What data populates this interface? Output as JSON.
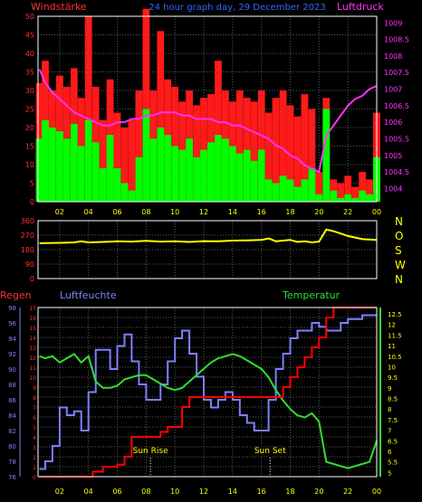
{
  "header": {
    "left_label": "Windstärke",
    "center_label": "24 hour graph day, 29 December 2023",
    "right_label": "Luftdruck"
  },
  "colors": {
    "background": "#000000",
    "frame": "#ffffff",
    "grid": "#5a5a5a",
    "wind_gust": "#ff1a1a",
    "wind_avg": "#00ff00",
    "pressure": "#ff33ff",
    "direction": "#ffff00",
    "humidity": "#7f7fff",
    "temperature": "#33dd33",
    "rain": "#ff0000",
    "left_axis_text": "#ff3030",
    "direction_letters": "#ffff00",
    "humidity_axis_text": "#7f7fff",
    "temp_axis_text": "#ffff00",
    "sun_text": "#ffff00",
    "title_text": "#3366ff"
  },
  "x_axis": {
    "ticks": [
      "02",
      "04",
      "06",
      "08",
      "10",
      "12",
      "14",
      "16",
      "18",
      "20",
      "22",
      "00"
    ],
    "range_hours": [
      0.5,
      24
    ]
  },
  "bottom_panel": {
    "rain_label": "Regen",
    "humidity_label": "Luftfeuchte",
    "temperature_label": "Temperatur",
    "sunrise_label": "Sun Rise",
    "sunset_label": "Sun Set",
    "sunrise_hour": 8.3,
    "sunset_hour": 16.6
  },
  "chart_data": [
    {
      "type": "line",
      "series": [
        {
          "name": "Windstärke",
          "axis": "left",
          "ylim": [
            0,
            50
          ],
          "y_ticks": [
            0,
            5,
            10,
            15,
            20,
            25,
            30,
            35,
            40,
            45,
            50
          ],
          "x": [
            0.6,
            1.0,
            1.5,
            2.0,
            2.5,
            3.0,
            3.5,
            4.0,
            4.5,
            5.0,
            5.5,
            6.0,
            6.5,
            7.0,
            7.5,
            8.0,
            8.5,
            9.0,
            9.5,
            10.0,
            10.5,
            11.0,
            11.5,
            12.0,
            12.5,
            13.0,
            13.5,
            14.0,
            14.5,
            15.0,
            15.5,
            16.0,
            16.5,
            17.0,
            17.5,
            18.0,
            18.5,
            19.0,
            19.5,
            20.0,
            20.5,
            21.0,
            21.5,
            22.0,
            22.5,
            23.0,
            23.5,
            24.0
          ],
          "gust": [
            32,
            38,
            30,
            34,
            31,
            36,
            28,
            50,
            31,
            22,
            33,
            24,
            20,
            22,
            30,
            52,
            30,
            46,
            33,
            31,
            27,
            30,
            26,
            28,
            29,
            38,
            30,
            27,
            30,
            28,
            27,
            30,
            24,
            28,
            30,
            26,
            23,
            29,
            25,
            8,
            28,
            6,
            5,
            7,
            4,
            8,
            6,
            24
          ],
          "average": [
            17,
            22,
            20,
            19,
            17,
            21,
            15,
            22,
            16,
            9,
            18,
            9,
            5,
            3,
            12,
            25,
            17,
            20,
            18,
            15,
            14,
            17,
            12,
            14,
            16,
            18,
            17,
            15,
            13,
            14,
            11,
            14,
            6,
            5,
            7,
            6,
            4,
            6,
            9,
            2,
            25,
            3,
            1,
            2,
            1,
            3,
            2,
            12
          ]
        },
        {
          "name": "Luftdruck",
          "axis": "right",
          "ylim": [
            1003.6,
            1009.2
          ],
          "y_ticks": [
            1004,
            1004.5,
            1005,
            1005.5,
            1006,
            1006.5,
            1007,
            1007.5,
            1008,
            1008.5,
            1009
          ],
          "x": [
            0.6,
            1.0,
            1.5,
            2.0,
            2.5,
            3.0,
            3.5,
            4.0,
            4.5,
            5.0,
            5.5,
            6.0,
            6.5,
            7.0,
            7.5,
            8.0,
            8.5,
            9.0,
            9.5,
            10.0,
            10.5,
            11.0,
            11.5,
            12.0,
            12.5,
            13.0,
            13.5,
            14.0,
            14.5,
            15.0,
            15.5,
            16.0,
            16.5,
            17.0,
            17.5,
            18.0,
            18.5,
            19.0,
            19.5,
            20.0,
            20.5,
            21.0,
            21.5,
            22.0,
            22.5,
            23.0,
            23.5,
            24.0
          ],
          "values": [
            1007.6,
            1007.2,
            1006.9,
            1006.7,
            1006.5,
            1006.3,
            1006.2,
            1006.1,
            1006.0,
            1005.9,
            1005.9,
            1006.0,
            1006.0,
            1006.1,
            1006.1,
            1006.2,
            1006.2,
            1006.3,
            1006.3,
            1006.3,
            1006.2,
            1006.2,
            1006.1,
            1006.1,
            1006.1,
            1006.0,
            1006.0,
            1005.9,
            1005.9,
            1005.8,
            1005.7,
            1005.6,
            1005.5,
            1005.3,
            1005.2,
            1005.0,
            1004.9,
            1004.7,
            1004.6,
            1004.5,
            1005.6,
            1005.9,
            1006.2,
            1006.5,
            1006.7,
            1006.8,
            1007.0,
            1007.1
          ]
        }
      ]
    },
    {
      "type": "line",
      "series": [
        {
          "name": "Windrichtung",
          "ylim": [
            0,
            360
          ],
          "y_ticks": [
            0,
            90,
            180,
            270,
            360
          ],
          "direction_labels": [
            "N",
            "W",
            "S",
            "O",
            "N"
          ],
          "x": [
            0.6,
            2.0,
            3.0,
            3.5,
            4.0,
            5.0,
            6.0,
            7.0,
            8.0,
            9.0,
            10.0,
            11.0,
            12.0,
            13.0,
            14.0,
            15.0,
            16.0,
            16.5,
            17.0,
            17.5,
            18.0,
            18.5,
            19.0,
            19.5,
            20.0,
            20.5,
            21.0,
            21.5,
            22.0,
            23.0,
            24.0
          ],
          "values": [
            220,
            222,
            225,
            232,
            225,
            228,
            232,
            230,
            235,
            230,
            232,
            228,
            233,
            232,
            236,
            238,
            240,
            250,
            232,
            236,
            240,
            228,
            232,
            225,
            230,
            305,
            295,
            280,
            265,
            245,
            240
          ]
        }
      ]
    },
    {
      "type": "line",
      "series": [
        {
          "name": "Regen",
          "axis": "left",
          "ylim": [
            0,
            17
          ],
          "y_ticks": [
            0,
            1,
            2,
            3,
            4,
            5,
            6,
            7,
            8,
            9,
            10,
            11,
            12,
            13,
            14,
            15,
            16,
            17
          ],
          "x": [
            0.6,
            3.7,
            4.3,
            5.0,
            6.0,
            6.5,
            7.0,
            8.5,
            9.0,
            9.5,
            10.0,
            10.5,
            11.0,
            12.0,
            13.0,
            14.0,
            15.0,
            16.0,
            17.0,
            17.5,
            18.0,
            18.5,
            19.0,
            19.5,
            20.0,
            20.5,
            21.0,
            22.0,
            23.0,
            24.0
          ],
          "values": [
            0.0,
            0.0,
            0.5,
            1.0,
            1.2,
            2.0,
            4.0,
            4.0,
            4.5,
            5.0,
            5.0,
            7.0,
            8.0,
            8.0,
            8.0,
            8.0,
            8.0,
            8.0,
            8.0,
            9.0,
            10.0,
            11.0,
            12.0,
            13.0,
            14.0,
            16.0,
            17.0,
            17.0,
            17.0,
            17.0
          ]
        },
        {
          "name": "Luftfeuchte",
          "axis": "left2",
          "ylim": [
            76,
            98
          ],
          "y_ticks": [
            76,
            78,
            80,
            82,
            84,
            86,
            88,
            90,
            92,
            94,
            96,
            98
          ],
          "x": [
            0.6,
            1.0,
            1.5,
            2.0,
            2.5,
            3.0,
            3.5,
            4.0,
            4.5,
            5.0,
            5.5,
            6.0,
            6.5,
            7.0,
            7.5,
            8.0,
            8.5,
            9.0,
            9.5,
            10.0,
            10.5,
            11.0,
            11.5,
            12.0,
            12.5,
            13.0,
            13.5,
            14.0,
            14.5,
            15.0,
            15.5,
            16.0,
            16.5,
            17.0,
            17.5,
            18.0,
            18.5,
            19.0,
            19.5,
            20.0,
            20.5,
            21.0,
            21.5,
            22.0,
            22.5,
            23.0,
            23.5,
            24.0
          ],
          "values": [
            77.0,
            78.0,
            80.0,
            85.0,
            84.0,
            84.5,
            82.0,
            87.0,
            92.5,
            92.5,
            90.0,
            93.0,
            94.5,
            91.0,
            88.0,
            86.0,
            86.0,
            88.0,
            91.0,
            94.0,
            95.0,
            92.0,
            89.0,
            86.0,
            85.0,
            86.0,
            87.0,
            86.0,
            84.0,
            83.0,
            82.0,
            82.0,
            86.0,
            90.0,
            92.0,
            94.0,
            95.0,
            95.0,
            96.0,
            95.5,
            95.0,
            95.0,
            96.0,
            96.5,
            96.5,
            97.0,
            97.0,
            97.0
          ]
        },
        {
          "name": "Temperatur",
          "axis": "right",
          "ylim": [
            4.8,
            12.8
          ],
          "y_ticks": [
            5,
            5.5,
            6,
            6.5,
            7,
            7.5,
            8,
            8.5,
            9,
            9.5,
            10,
            10.5,
            11,
            11.5,
            12,
            12.5
          ],
          "x": [
            0.6,
            1.0,
            1.5,
            2.0,
            2.5,
            3.0,
            3.5,
            4.0,
            4.5,
            5.0,
            5.5,
            6.0,
            6.5,
            7.0,
            7.5,
            8.0,
            8.5,
            9.0,
            9.5,
            10.0,
            10.5,
            11.0,
            11.5,
            12.0,
            12.5,
            13.0,
            13.5,
            14.0,
            14.5,
            15.0,
            15.5,
            16.0,
            16.5,
            17.0,
            17.5,
            18.0,
            18.5,
            19.0,
            19.5,
            20.0,
            20.5,
            21.0,
            21.5,
            22.0,
            22.5,
            23.0,
            23.5,
            24.0
          ],
          "values": [
            10.5,
            10.4,
            10.5,
            10.2,
            10.4,
            10.6,
            10.2,
            10.5,
            9.3,
            9.0,
            9.0,
            9.1,
            9.4,
            9.5,
            9.6,
            9.6,
            9.4,
            9.2,
            9.0,
            8.9,
            9.0,
            9.3,
            9.6,
            9.9,
            10.2,
            10.4,
            10.5,
            10.6,
            10.5,
            10.3,
            10.1,
            9.9,
            9.5,
            8.9,
            8.4,
            8.0,
            7.7,
            7.6,
            7.8,
            7.4,
            5.5,
            5.4,
            5.3,
            5.2,
            5.3,
            5.4,
            5.5,
            6.5
          ]
        }
      ]
    }
  ]
}
